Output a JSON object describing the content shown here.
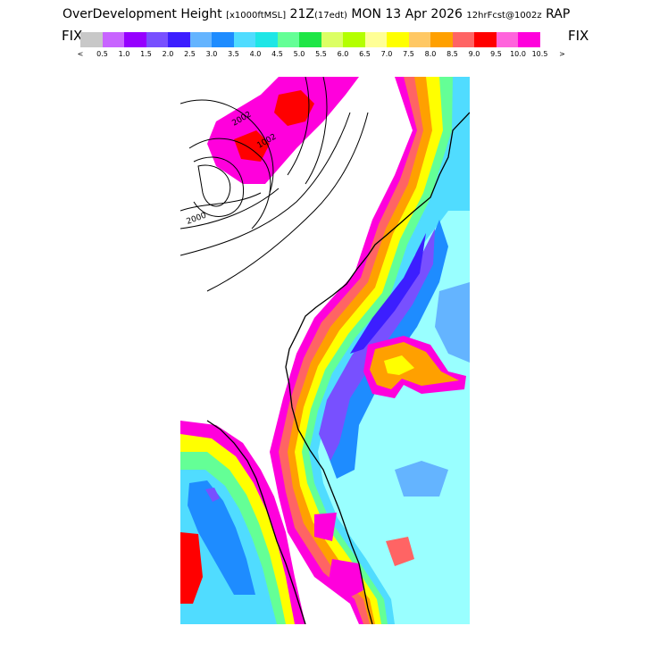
{
  "header": {
    "field": "OverDevelopment Height",
    "units": "[x1000ftMSL]",
    "valid": "21Z",
    "valid_local": "(17edt)",
    "date": "MON 13 Apr 2026",
    "forecast": "12hrFcst@1002z",
    "model": "RAP"
  },
  "scale": {
    "fix_left": "FIX",
    "fix_right": "FIX",
    "colors": [
      "#c8c8c8",
      "#c864ff",
      "#9600ff",
      "#7850ff",
      "#3c1eff",
      "#64b4ff",
      "#1e8cff",
      "#50dcff",
      "#1ee6e6",
      "#64ff96",
      "#1ee646",
      "#dcff64",
      "#b4ff00",
      "#ffff96",
      "#ffff00",
      "#ffc864",
      "#ffa000",
      "#ff6464",
      "#ff0000",
      "#ff64dc",
      "#ff00dc"
    ],
    "labels": [
      "<",
      "0.5",
      "1.0",
      "1.5",
      "2.0",
      "2.5",
      "3.0",
      "3.5",
      "4.0",
      "4.5",
      "5.0",
      "5.5",
      "6.0",
      "6.5",
      "7.0",
      "7.5",
      "8.0",
      "8.5",
      "9.0",
      "9.5",
      "10.0",
      "10.5",
      ">"
    ]
  },
  "map": {
    "contour_labels": [
      "2002",
      "1002",
      "2000"
    ]
  }
}
